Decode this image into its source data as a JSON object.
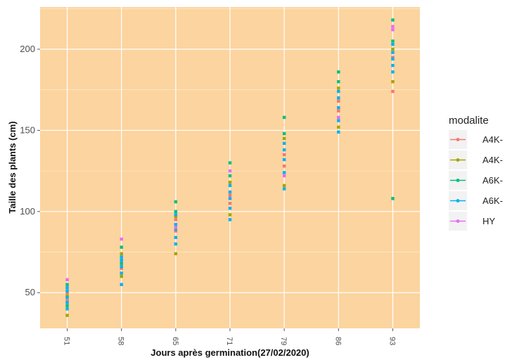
{
  "chart_data": {
    "type": "scatter",
    "title": "",
    "xlabel": "Jours après germination(27/02/2020)",
    "ylabel": "Taille des plants (cm)",
    "x_categories": [
      "51",
      "58",
      "65",
      "71",
      "79",
      "86",
      "93"
    ],
    "ylim": [
      28,
      226
    ],
    "yticks": [
      50,
      100,
      150,
      200
    ],
    "grid": true,
    "legend_position": "right",
    "legend_title": "modalite",
    "background": "#fcd49f",
    "series": [
      {
        "name": "A4K-",
        "color": "#f8766d",
        "points": [
          {
            "x": "51",
            "y": 50
          },
          {
            "x": "51",
            "y": 45
          },
          {
            "x": "58",
            "y": 70
          },
          {
            "x": "58",
            "y": 65
          },
          {
            "x": "65",
            "y": 88
          },
          {
            "x": "65",
            "y": 95
          },
          {
            "x": "71",
            "y": 110
          },
          {
            "x": "71",
            "y": 105
          },
          {
            "x": "79",
            "y": 135
          },
          {
            "x": "79",
            "y": 128
          },
          {
            "x": "86",
            "y": 162
          },
          {
            "x": "86",
            "y": 168
          },
          {
            "x": "93",
            "y": 174
          },
          {
            "x": "93",
            "y": 195
          }
        ]
      },
      {
        "name": "A4K-",
        "color": "#a3a500",
        "points": [
          {
            "x": "51",
            "y": 36
          },
          {
            "x": "51",
            "y": 48
          },
          {
            "x": "58",
            "y": 60
          },
          {
            "x": "58",
            "y": 74
          },
          {
            "x": "65",
            "y": 74
          },
          {
            "x": "65",
            "y": 97
          },
          {
            "x": "71",
            "y": 98
          },
          {
            "x": "71",
            "y": 118
          },
          {
            "x": "79",
            "y": 116
          },
          {
            "x": "79",
            "y": 145
          },
          {
            "x": "86",
            "y": 152
          },
          {
            "x": "86",
            "y": 176
          },
          {
            "x": "93",
            "y": 180
          },
          {
            "x": "93",
            "y": 200
          }
        ]
      },
      {
        "name": "A6K-",
        "color": "#00bf7d",
        "points": [
          {
            "x": "51",
            "y": 55
          },
          {
            "x": "51",
            "y": 42
          },
          {
            "x": "58",
            "y": 78
          },
          {
            "x": "58",
            "y": 68
          },
          {
            "x": "65",
            "y": 106
          },
          {
            "x": "65",
            "y": 100
          },
          {
            "x": "71",
            "y": 130
          },
          {
            "x": "71",
            "y": 122
          },
          {
            "x": "79",
            "y": 158
          },
          {
            "x": "79",
            "y": 148
          },
          {
            "x": "86",
            "y": 186
          },
          {
            "x": "86",
            "y": 180
          },
          {
            "x": "93",
            "y": 218
          },
          {
            "x": "93",
            "y": 108
          },
          {
            "x": "93",
            "y": 205
          }
        ]
      },
      {
        "name": "A6K-",
        "color": "#00b0f6",
        "points": [
          {
            "x": "51",
            "y": 40
          },
          {
            "x": "51",
            "y": 44
          },
          {
            "x": "51",
            "y": 47
          },
          {
            "x": "51",
            "y": 51
          },
          {
            "x": "51",
            "y": 53
          },
          {
            "x": "58",
            "y": 55
          },
          {
            "x": "58",
            "y": 62
          },
          {
            "x": "58",
            "y": 66
          },
          {
            "x": "58",
            "y": 70
          },
          {
            "x": "58",
            "y": 72
          },
          {
            "x": "65",
            "y": 80
          },
          {
            "x": "65",
            "y": 84
          },
          {
            "x": "65",
            "y": 89
          },
          {
            "x": "65",
            "y": 92
          },
          {
            "x": "65",
            "y": 98
          },
          {
            "x": "71",
            "y": 95
          },
          {
            "x": "71",
            "y": 102
          },
          {
            "x": "71",
            "y": 108
          },
          {
            "x": "71",
            "y": 112
          },
          {
            "x": "71",
            "y": 116
          },
          {
            "x": "79",
            "y": 114
          },
          {
            "x": "79",
            "y": 124
          },
          {
            "x": "79",
            "y": 132
          },
          {
            "x": "79",
            "y": 138
          },
          {
            "x": "79",
            "y": 142
          },
          {
            "x": "86",
            "y": 149
          },
          {
            "x": "86",
            "y": 156
          },
          {
            "x": "86",
            "y": 164
          },
          {
            "x": "86",
            "y": 170
          },
          {
            "x": "86",
            "y": 174
          },
          {
            "x": "93",
            "y": 186
          },
          {
            "x": "93",
            "y": 190
          },
          {
            "x": "93",
            "y": 194
          },
          {
            "x": "93",
            "y": 198
          },
          {
            "x": "93",
            "y": 203
          }
        ]
      },
      {
        "name": "HY",
        "color": "#e76bf3",
        "points": [
          {
            "x": "51",
            "y": 58
          },
          {
            "x": "58",
            "y": 83
          },
          {
            "x": "65",
            "y": 90
          },
          {
            "x": "71",
            "y": 125
          },
          {
            "x": "79",
            "y": 122
          },
          {
            "x": "86",
            "y": 158
          },
          {
            "x": "93",
            "y": 212
          },
          {
            "x": "93",
            "y": 214
          }
        ]
      }
    ]
  }
}
